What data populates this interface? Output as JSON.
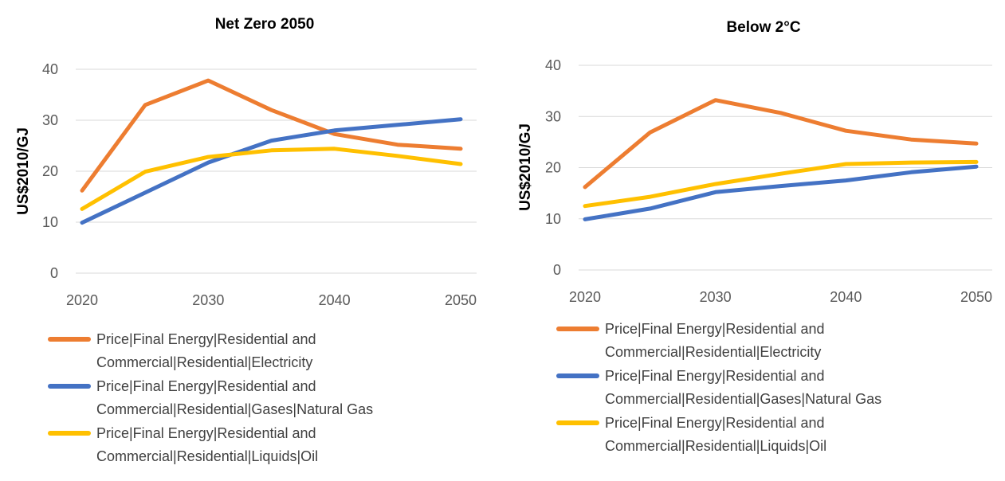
{
  "colors": {
    "electricity": "#ED7D31",
    "natural_gas": "#4472C4",
    "oil": "#FFC000"
  },
  "chart_data": [
    {
      "type": "line",
      "title": "Net Zero 2050",
      "xlabel": "",
      "ylabel": "US$2010/GJ",
      "x": [
        2020,
        2025,
        2030,
        2035,
        2040,
        2045,
        2050
      ],
      "x_ticks": [
        "2020",
        "2030",
        "2040",
        "2050"
      ],
      "y_ticks": [
        "0",
        "10",
        "20",
        "30",
        "40"
      ],
      "xlim": [
        2020,
        2050
      ],
      "ylim": [
        0,
        40
      ],
      "grid": "horizontal",
      "legend_position": "bottom",
      "series": [
        {
          "name": "Price|Final Energy|Residential and Commercial|Residential|Electricity",
          "legend_lines": [
            "Price|Final Energy|Residential and",
            "Commercial|Residential|Electricity"
          ],
          "color": "#ED7D31",
          "values": [
            16.2,
            33.0,
            37.8,
            32.0,
            27.3,
            25.2,
            24.4
          ]
        },
        {
          "name": "Price|Final Energy|Residential and Commercial|Residential|Gases|Natural Gas",
          "legend_lines": [
            "Price|Final Energy|Residential and",
            "Commercial|Residential|Gases|Natural Gas"
          ],
          "color": "#4472C4",
          "values": [
            9.9,
            15.8,
            21.7,
            26.0,
            28.0,
            29.1,
            30.2
          ]
        },
        {
          "name": "Price|Final Energy|Residential and Commercial|Residential|Liquids|Oil",
          "legend_lines": [
            "Price|Final Energy|Residential and",
            "Commercial|Residential|Liquids|Oil"
          ],
          "color": "#FFC000",
          "values": [
            12.6,
            19.9,
            22.8,
            24.1,
            24.4,
            23.0,
            21.4
          ]
        }
      ]
    },
    {
      "type": "line",
      "title": "Below 2°C",
      "xlabel": "",
      "ylabel": "US$2010/GJ",
      "x": [
        2020,
        2025,
        2030,
        2035,
        2040,
        2045,
        2050
      ],
      "x_ticks": [
        "2020",
        "2030",
        "2040",
        "2050"
      ],
      "y_ticks": [
        "0",
        "10",
        "20",
        "30",
        "40"
      ],
      "xlim": [
        2020,
        2050
      ],
      "ylim": [
        0,
        40
      ],
      "grid": "horizontal",
      "legend_position": "bottom",
      "series": [
        {
          "name": "Price|Final Energy|Residential and Commercial|Residential|Electricity",
          "legend_lines": [
            "Price|Final Energy|Residential and",
            "Commercial|Residential|Electricity"
          ],
          "color": "#ED7D31",
          "values": [
            16.2,
            26.9,
            33.2,
            30.7,
            27.2,
            25.5,
            24.7
          ]
        },
        {
          "name": "Price|Final Energy|Residential and Commercial|Residential|Gases|Natural Gas",
          "legend_lines": [
            "Price|Final Energy|Residential and",
            "Commercial|Residential|Gases|Natural Gas"
          ],
          "color": "#4472C4",
          "values": [
            9.9,
            12.0,
            15.2,
            16.4,
            17.5,
            19.1,
            20.2
          ]
        },
        {
          "name": "Price|Final Energy|Residential and Commercial|Residential|Liquids|Oil",
          "legend_lines": [
            "Price|Final Energy|Residential and",
            "Commercial|Residential|Liquids|Oil"
          ],
          "color": "#FFC000",
          "values": [
            12.5,
            14.3,
            16.8,
            18.8,
            20.7,
            21.0,
            21.1
          ]
        }
      ]
    }
  ]
}
